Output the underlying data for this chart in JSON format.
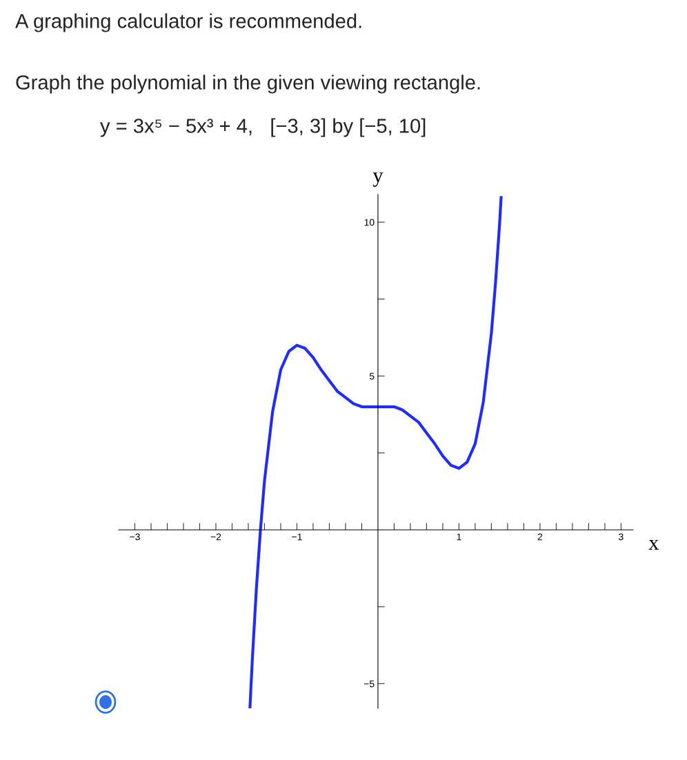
{
  "chart_data": {
    "type": "line",
    "annotations": [
      "A graphing calculator is recommended.",
      "Graph the polynomial in the given viewing rectangle.",
      "y = 3x⁵ − 5x³ + 4,   [−3, 3] by [−5, 10]"
    ],
    "xlabel": "x",
    "ylabel": "y",
    "series": [
      {
        "color": "#1f2bff",
        "x": [
          -1.58,
          -1.55,
          -1.5,
          -1.45,
          -1.4,
          -1.3,
          -1.2,
          -1.1,
          -1.0,
          -0.9,
          -0.8,
          -0.7,
          -0.6,
          -0.5,
          -0.4,
          -0.3,
          -0.2,
          0,
          0.2,
          0.3,
          0.4,
          0.5,
          0.6,
          0.7,
          0.8,
          0.9,
          1.0,
          1.1,
          1.2,
          1.3,
          1.4,
          1.45,
          1.5,
          1.52
        ],
        "values": [
          -5.8,
          -4.2,
          -1.9,
          0.0,
          1.6,
          3.85,
          5.2,
          5.8,
          6.0,
          5.9,
          5.6,
          5.2,
          4.85,
          4.5,
          4.3,
          4.1,
          4.0,
          4.0,
          4.0,
          3.9,
          3.7,
          3.5,
          3.15,
          2.8,
          2.4,
          2.1,
          2.0,
          2.2,
          2.8,
          4.15,
          6.4,
          8.0,
          9.9,
          10.8
        ]
      }
    ],
    "xlim": [
      -3.2,
      3.15
    ],
    "ylim": [
      -5.8,
      10.9
    ],
    "xticks": [
      {
        "value": -3,
        "label": "−3"
      },
      {
        "value": -2.8,
        "label": null
      },
      {
        "value": -2.6,
        "label": null
      },
      {
        "value": -2.4,
        "label": null
      },
      {
        "value": -2.2,
        "label": null
      },
      {
        "value": -2,
        "label": "−2"
      },
      {
        "value": -1.8,
        "label": null
      },
      {
        "value": -1.6,
        "label": null
      },
      {
        "value": -1.4,
        "label": null
      },
      {
        "value": -1.2,
        "label": null
      },
      {
        "value": -1,
        "label": "−1"
      },
      {
        "value": -0.8,
        "label": null
      },
      {
        "value": -0.6,
        "label": null
      },
      {
        "value": -0.4,
        "label": null
      },
      {
        "value": -0.2,
        "label": null
      },
      {
        "value": 0.2,
        "label": null
      },
      {
        "value": 0.4,
        "label": null
      },
      {
        "value": 0.6,
        "label": null
      },
      {
        "value": 0.8,
        "label": null
      },
      1,
      {
        "value": 1.2,
        "label": null
      },
      {
        "value": 1.4,
        "label": null
      },
      {
        "value": 1.6,
        "label": null
      },
      {
        "value": 1.8,
        "label": null
      },
      2,
      {
        "value": 2.2,
        "label": null
      },
      {
        "value": 2.4,
        "label": null
      },
      {
        "value": 2.6,
        "label": null
      },
      {
        "value": 2.8,
        "label": null
      },
      3
    ],
    "yticks": [
      {
        "value": -5,
        "label": "−5"
      },
      {
        "value": -2.5,
        "label": null
      },
      {
        "value": 2.5,
        "label": null
      },
      5,
      {
        "value": 7.5,
        "label": null
      },
      10
    ],
    "grid": false,
    "legend": false,
    "marker": "none",
    "line_style": "solid"
  }
}
